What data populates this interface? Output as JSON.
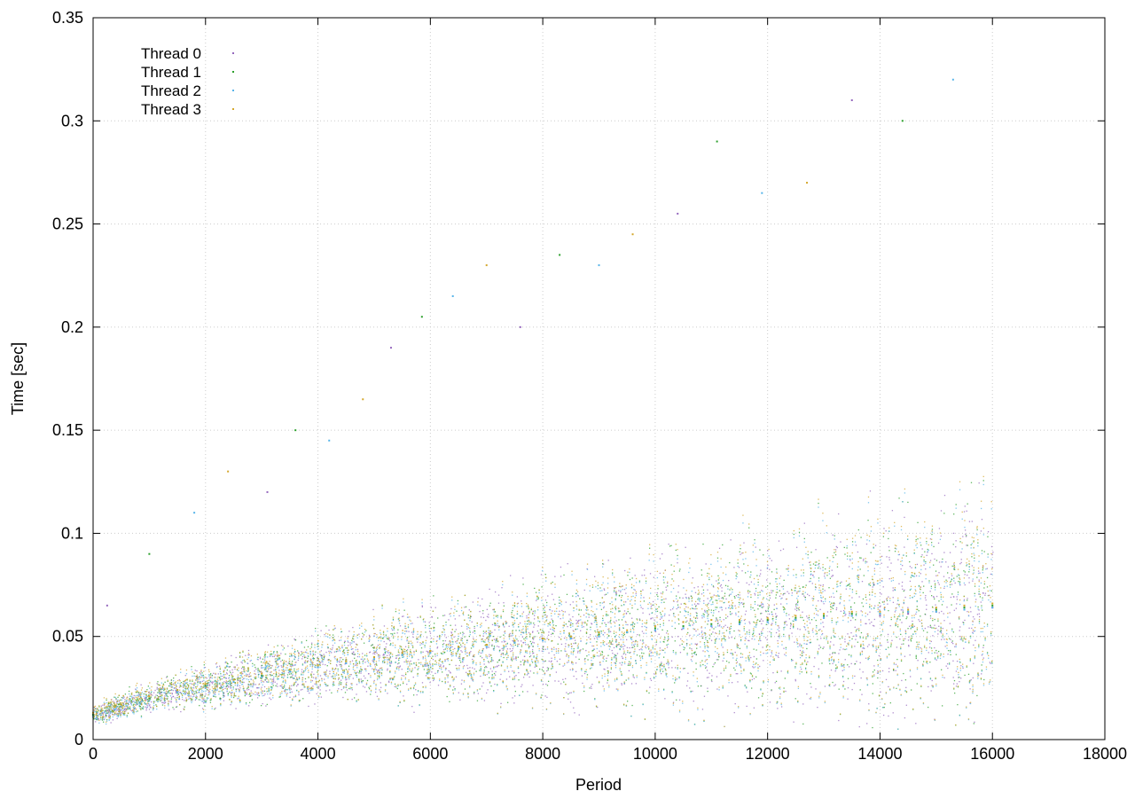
{
  "chart_data": {
    "type": "scatter",
    "xlabel": "Period",
    "ylabel": "Time [sec]",
    "xlim": [
      0,
      18000
    ],
    "ylim": [
      0,
      0.35
    ],
    "xticks": [
      0,
      2000,
      4000,
      6000,
      8000,
      10000,
      12000,
      14000,
      16000,
      18000
    ],
    "yticks": [
      0,
      0.05,
      0.1,
      0.15,
      0.2,
      0.25,
      0.3,
      0.35
    ],
    "xtick_labels": [
      "0",
      "2000",
      "4000",
      "6000",
      "8000",
      "10000",
      "12000",
      "14000",
      "16000",
      "18000"
    ],
    "ytick_labels": [
      "0",
      "0.05",
      "0.1",
      "0.15",
      "0.2",
      "0.25",
      "0.3",
      "0.35"
    ],
    "grid": true,
    "grid_style": "dotted",
    "legend": "top-left",
    "series": [
      {
        "name": "Thread 0",
        "color": "#9467bd",
        "x": [
          0,
          500,
          1000,
          1500,
          2000,
          2500,
          3000,
          3500,
          4000,
          4500,
          5000,
          5500,
          6000,
          6500,
          7000,
          7500,
          8000,
          8500,
          9000,
          9500,
          10000,
          10500,
          11000,
          11500,
          12000,
          12500,
          13000,
          13500,
          14000,
          14500,
          15000,
          15500,
          16000
        ],
        "y": [
          0.012,
          0.016,
          0.02,
          0.023,
          0.026,
          0.028,
          0.031,
          0.033,
          0.035,
          0.037,
          0.039,
          0.041,
          0.043,
          0.044,
          0.046,
          0.047,
          0.048,
          0.049,
          0.05,
          0.052,
          0.053,
          0.054,
          0.055,
          0.056,
          0.057,
          0.058,
          0.059,
          0.06,
          0.06,
          0.061,
          0.062,
          0.063,
          0.064
        ]
      },
      {
        "name": "Thread 1",
        "color": "#2ca02c",
        "x": [
          0,
          500,
          1000,
          1500,
          2000,
          2500,
          3000,
          3500,
          4000,
          4500,
          5000,
          5500,
          6000,
          6500,
          7000,
          7500,
          8000,
          8500,
          9000,
          9500,
          10000,
          10500,
          11000,
          11500,
          12000,
          12500,
          13000,
          13500,
          14000,
          14500,
          15000,
          15500,
          16000
        ],
        "y": [
          0.012,
          0.017,
          0.02,
          0.024,
          0.026,
          0.029,
          0.031,
          0.033,
          0.036,
          0.038,
          0.04,
          0.041,
          0.043,
          0.045,
          0.046,
          0.047,
          0.049,
          0.05,
          0.051,
          0.052,
          0.054,
          0.055,
          0.056,
          0.057,
          0.058,
          0.059,
          0.06,
          0.061,
          0.061,
          0.062,
          0.063,
          0.064,
          0.065
        ]
      },
      {
        "name": "Thread 2",
        "color": "#56b4e9",
        "x": [
          0,
          500,
          1000,
          1500,
          2000,
          2500,
          3000,
          3500,
          4000,
          4500,
          5000,
          5500,
          6000,
          6500,
          7000,
          7500,
          8000,
          8500,
          9000,
          9500,
          10000,
          10500,
          11000,
          11500,
          12000,
          12500,
          13000,
          13500,
          14000,
          14500,
          15000,
          15500,
          16000
        ],
        "y": [
          0.011,
          0.016,
          0.019,
          0.023,
          0.025,
          0.028,
          0.03,
          0.033,
          0.035,
          0.037,
          0.039,
          0.041,
          0.042,
          0.044,
          0.045,
          0.047,
          0.048,
          0.049,
          0.05,
          0.052,
          0.053,
          0.054,
          0.055,
          0.056,
          0.057,
          0.058,
          0.059,
          0.06,
          0.061,
          0.062,
          0.062,
          0.063,
          0.064
        ]
      },
      {
        "name": "Thread 3",
        "color": "#d4a72c",
        "x": [
          0,
          500,
          1000,
          1500,
          2000,
          2500,
          3000,
          3500,
          4000,
          4500,
          5000,
          5500,
          6000,
          6500,
          7000,
          7500,
          8000,
          8500,
          9000,
          9500,
          10000,
          10500,
          11000,
          11500,
          12000,
          12500,
          13000,
          13500,
          14000,
          14500,
          15000,
          15500,
          16000
        ],
        "y": [
          0.013,
          0.017,
          0.021,
          0.024,
          0.027,
          0.029,
          0.032,
          0.034,
          0.036,
          0.038,
          0.04,
          0.042,
          0.043,
          0.045,
          0.046,
          0.048,
          0.049,
          0.05,
          0.052,
          0.053,
          0.055,
          0.057,
          0.058,
          0.058,
          0.059,
          0.06,
          0.061,
          0.062,
          0.062,
          0.063,
          0.064,
          0.065,
          0.066
        ]
      }
    ],
    "outliers": {
      "x": [
        250,
        1000,
        1800,
        2400,
        3100,
        3600,
        4200,
        4800,
        5300,
        5850,
        6400,
        7000,
        7600,
        8300,
        9000,
        9600,
        10400,
        11100,
        11900,
        12700,
        13500,
        14400,
        15300
      ],
      "y": [
        0.065,
        0.09,
        0.11,
        0.13,
        0.12,
        0.15,
        0.145,
        0.165,
        0.19,
        0.205,
        0.215,
        0.23,
        0.2,
        0.235,
        0.23,
        0.245,
        0.255,
        0.29,
        0.265,
        0.27,
        0.31,
        0.3,
        0.32
      ]
    }
  }
}
